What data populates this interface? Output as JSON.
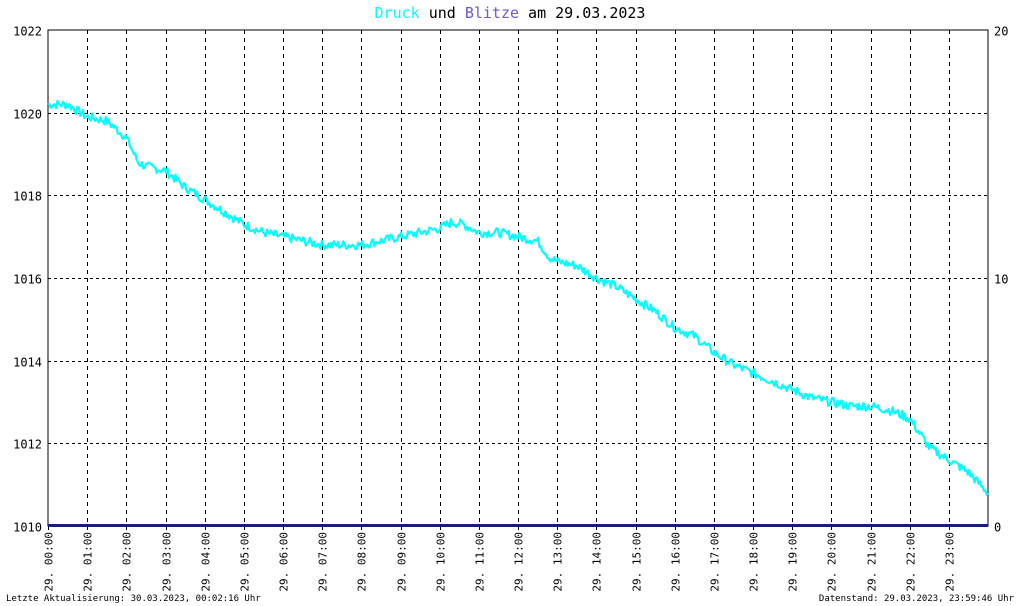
{
  "title": {
    "word1": "Druck",
    "word2": " und ",
    "word3": "Blitze",
    "word4": " am 29.03.2023"
  },
  "colors": {
    "druck": "#00FFFF",
    "blitze": "#6A5ACD",
    "grid": "#000000",
    "baseline": "#1a1a80"
  },
  "footer": {
    "left": "Letzte Aktualisierung: 30.03.2023, 00:02:16 Uhr",
    "right": "Datenstand: 29.03.2023, 23:59:46 Uhr"
  },
  "chart_data": {
    "type": "line",
    "title": "Druck und Blitze am 29.03.2023",
    "y_left": {
      "min": 1010,
      "max": 1022,
      "ticks": [
        1010,
        1012,
        1014,
        1016,
        1018,
        1020,
        1022
      ]
    },
    "y_right": {
      "min": 0,
      "max": 20,
      "ticks": [
        0,
        10,
        20
      ]
    },
    "x_hours": {
      "min": 0,
      "max": 24
    },
    "x_tick_labels": [
      "29. 00:00",
      "29. 01:00",
      "29. 02:00",
      "29. 03:00",
      "29. 04:00",
      "29. 05:00",
      "29. 06:00",
      "29. 07:00",
      "29. 08:00",
      "29. 09:00",
      "29. 10:00",
      "29. 11:00",
      "29. 12:00",
      "29. 13:00",
      "29. 14:00",
      "29. 15:00",
      "29. 16:00",
      "29. 17:00",
      "29. 18:00",
      "29. 19:00",
      "29. 20:00",
      "29. 21:00",
      "29. 22:00",
      "29. 23:00"
    ],
    "grid": true,
    "series": [
      {
        "name": "Druck",
        "axis": "left",
        "x": [
          0,
          0.5,
          1,
          1.5,
          2,
          2.3,
          2.5,
          3,
          3.5,
          4,
          4.5,
          5,
          5.5,
          6,
          6.5,
          7,
          7.5,
          8,
          8.5,
          9,
          9.5,
          10,
          10.3,
          10.6,
          11,
          11.5,
          12,
          12.5,
          12.8,
          13,
          13.5,
          14,
          14.5,
          15,
          15.5,
          16,
          16.5,
          17,
          17.5,
          18,
          18.5,
          19,
          19.5,
          20,
          20.5,
          21,
          21.5,
          22,
          22.5,
          23,
          23.5,
          24
        ],
        "values": [
          1020.2,
          1020.2,
          1019.9,
          1019.8,
          1019.4,
          1018.8,
          1018.7,
          1018.6,
          1018.2,
          1017.9,
          1017.6,
          1017.3,
          1017.1,
          1017.0,
          1016.9,
          1016.8,
          1016.8,
          1016.8,
          1016.9,
          1017.0,
          1017.1,
          1017.2,
          1017.35,
          1017.3,
          1017.1,
          1017.1,
          1017.0,
          1016.9,
          1016.5,
          1016.4,
          1016.3,
          1016.0,
          1015.8,
          1015.5,
          1015.2,
          1014.8,
          1014.6,
          1014.2,
          1013.9,
          1013.7,
          1013.5,
          1013.3,
          1013.1,
          1013.0,
          1012.9,
          1012.9,
          1012.8,
          1012.6,
          1011.9,
          1011.6,
          1011.3,
          1010.8
        ]
      },
      {
        "name": "Blitze",
        "axis": "right",
        "x": [
          0,
          24
        ],
        "values": [
          0,
          0
        ]
      }
    ]
  }
}
